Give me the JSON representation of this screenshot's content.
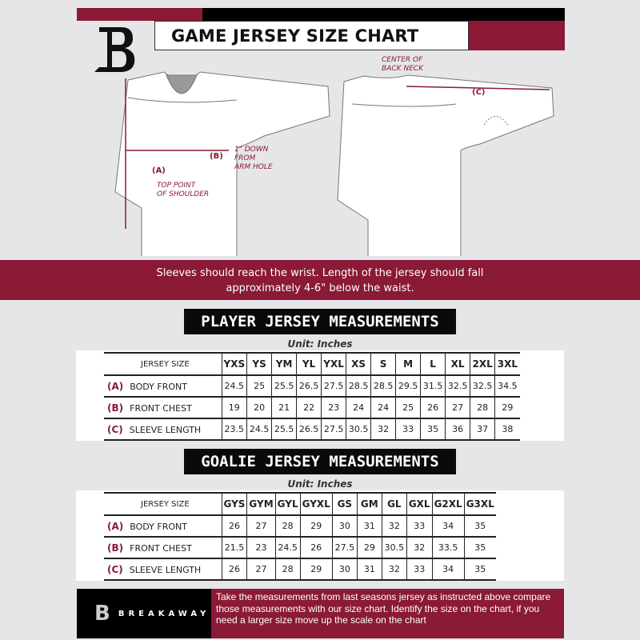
{
  "header": {
    "title": "GAME JERSEY SIZE CHART",
    "logo_letter": "B"
  },
  "diagram": {
    "label_a": "(A)",
    "note_a": "TOP POINT\nOF SHOULDER",
    "label_b": "(B)",
    "note_b": "1\" DOWN\nFROM\nARM HOLE",
    "label_c": "(C)",
    "note_c": "CENTER OF\nBACK NECK"
  },
  "banner": {
    "line1": "Sleeves should reach the wrist. Length of the jersey should fall",
    "line2": "approximately 4-6\" below the waist."
  },
  "player": {
    "heading": "PLAYER JERSEY MEASUREMENTS",
    "unit": "Unit: Inches",
    "size_label": "JERSEY SIZE",
    "sizes": [
      "YXS",
      "YS",
      "YM",
      "YL",
      "YXL",
      "XS",
      "S",
      "M",
      "L",
      "XL",
      "2XL",
      "3XL"
    ],
    "rows": [
      {
        "key": "(A)",
        "label": "BODY FRONT",
        "values": [
          "24.5",
          "25",
          "25.5",
          "26.5",
          "27.5",
          "28.5",
          "28.5",
          "29.5",
          "31.5",
          "32.5",
          "32.5",
          "34.5"
        ]
      },
      {
        "key": "(B)",
        "label": "FRONT CHEST",
        "values": [
          "19",
          "20",
          "21",
          "22",
          "23",
          "24",
          "24",
          "25",
          "26",
          "27",
          "28",
          "29"
        ]
      },
      {
        "key": "(C)",
        "label": "SLEEVE LENGTH",
        "values": [
          "23.5",
          "24.5",
          "25.5",
          "26.5",
          "27.5",
          "30.5",
          "32",
          "33",
          "35",
          "36",
          "37",
          "38"
        ]
      }
    ]
  },
  "goalie": {
    "heading": "GOALIE JERSEY MEASUREMENTS",
    "unit": "Unit: Inches",
    "size_label": "JERSEY SIZE",
    "sizes": [
      "GYS",
      "GYM",
      "GYL",
      "GYXL",
      "GS",
      "GM",
      "GL",
      "GXL",
      "G2XL",
      "G3XL"
    ],
    "rows": [
      {
        "key": "(A)",
        "label": "BODY FRONT",
        "values": [
          "26",
          "27",
          "28",
          "29",
          "30",
          "31",
          "32",
          "33",
          "34",
          "35"
        ]
      },
      {
        "key": "(B)",
        "label": "FRONT CHEST",
        "values": [
          "21.5",
          "23",
          "24.5",
          "26",
          "27.5",
          "29",
          "30.5",
          "32",
          "33.5",
          "35"
        ]
      },
      {
        "key": "(C)",
        "label": "SLEEVE LENGTH",
        "values": [
          "26",
          "27",
          "28",
          "29",
          "30",
          "31",
          "32",
          "33",
          "34",
          "35"
        ]
      }
    ]
  },
  "footer": {
    "brand": "BREAKAWAY",
    "text": "Take the measurements from last seasons jersey as instructed above compare those measurements  with our size chart. Identify the size on the chart, if you need a larger size move up the scale on the chart"
  },
  "colors": {
    "accent": "#8a1a35",
    "dark": "#000000",
    "background": "#e6e6e8"
  }
}
